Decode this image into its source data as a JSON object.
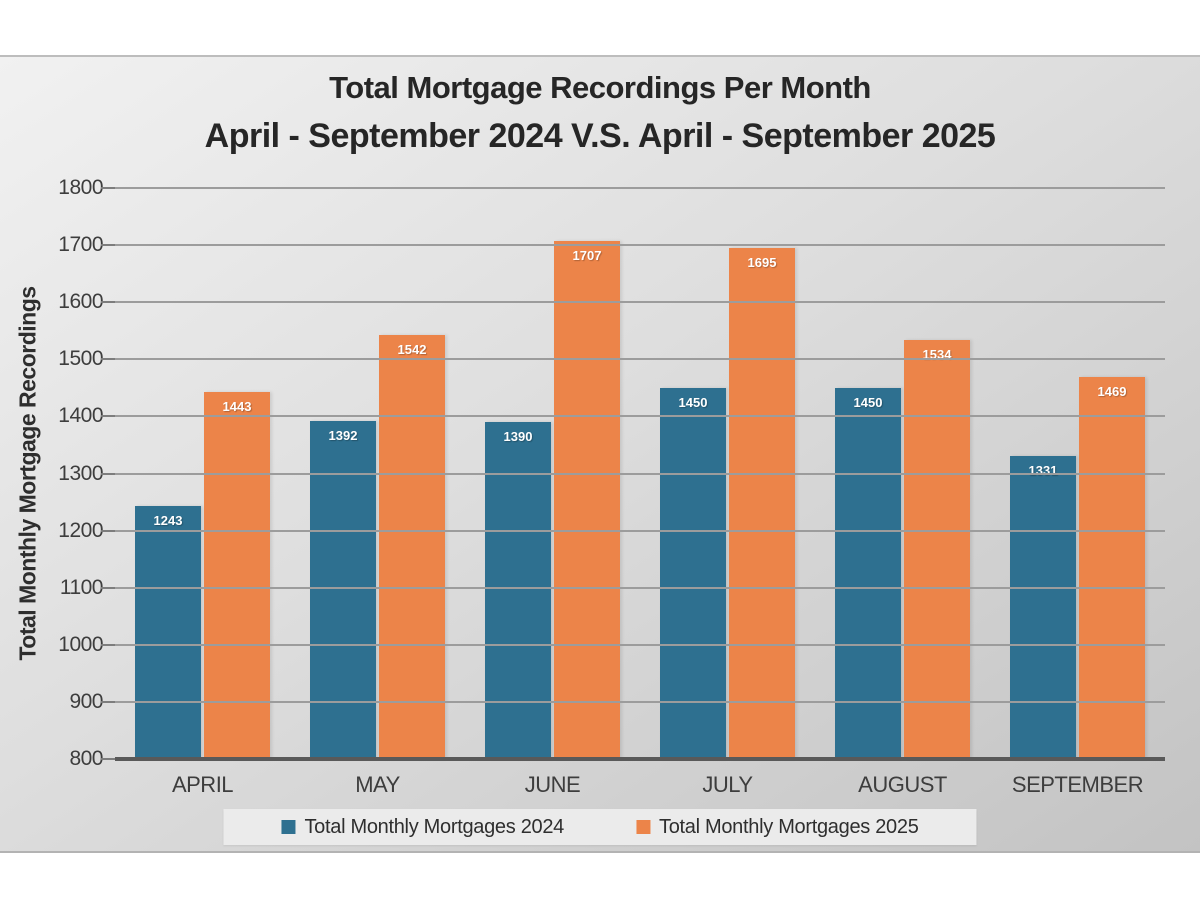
{
  "chart_data": {
    "type": "bar",
    "title_line1": "Total Mortgage Recordings Per Month",
    "title_line2": "April - September 2024 V.S. April - September 2025",
    "ylabel": "Total Monthly Mortgage Recordings",
    "categories": [
      "APRIL",
      "MAY",
      "JUNE",
      "JULY",
      "AUGUST",
      "SEPTEMBER"
    ],
    "series": [
      {
        "name": "Total Monthly Mortgages 2024",
        "color": "#2e7090",
        "values": [
          1243,
          1392,
          1390,
          1450,
          1450,
          1331
        ]
      },
      {
        "name": "Total Monthly Mortgages 2025",
        "color": "#ec8449",
        "values": [
          1443,
          1542,
          1707,
          1695,
          1534,
          1469
        ]
      }
    ],
    "ylim": [
      800,
      1800
    ],
    "ytick_step": 100,
    "grid": true,
    "legend_position": "bottom",
    "style_colors": {
      "gridline": "#9c9c9c",
      "axis_line": "#595959",
      "tick_text": "#3d3d3d",
      "title_text": "#262626",
      "bar_label_text": "#ffffff",
      "legend_background": "#ebebeb"
    }
  }
}
